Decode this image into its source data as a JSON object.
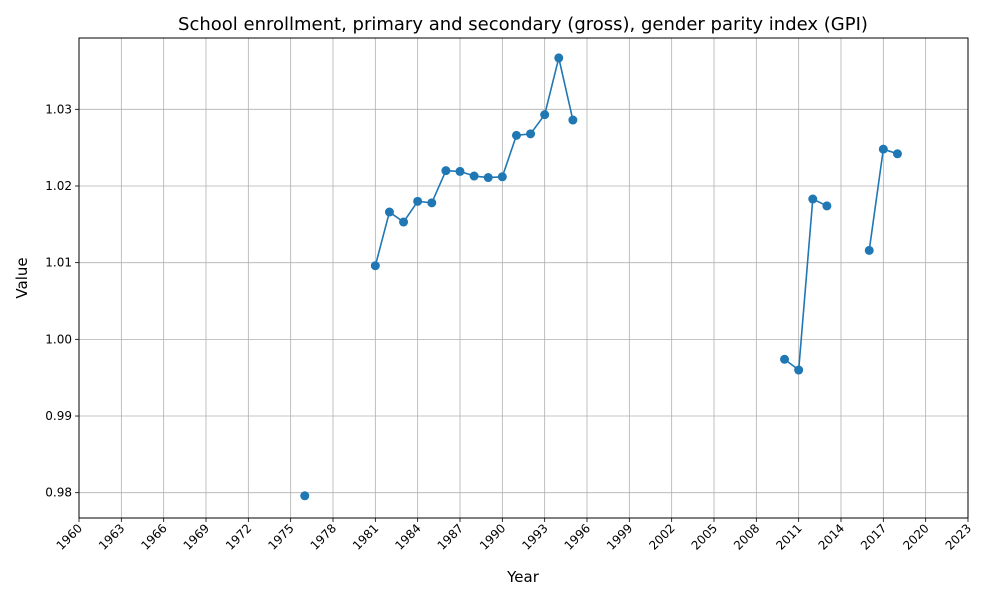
{
  "chart_data": {
    "type": "line",
    "title": "School enrollment, primary and secondary (gross), gender parity index (GPI)",
    "xlabel": "Year",
    "ylabel": "Value",
    "xlim": [
      1960,
      2023
    ],
    "ylim": [
      0.9767,
      1.0393
    ],
    "x_ticks": [
      1960,
      1963,
      1966,
      1969,
      1972,
      1975,
      1978,
      1981,
      1984,
      1987,
      1990,
      1993,
      1996,
      1999,
      2002,
      2005,
      2008,
      2011,
      2014,
      2017,
      2020,
      2023
    ],
    "y_ticks": [
      0.98,
      0.99,
      1.0,
      1.01,
      1.02,
      1.03
    ],
    "y_tick_labels": [
      "0.98",
      "0.99",
      "1.00",
      "1.01",
      "1.02",
      "1.03"
    ],
    "grid": true,
    "series": [
      {
        "color": "#1f77b4",
        "marker": "circle",
        "points": [
          {
            "x": 1976,
            "y": 0.9796
          },
          {
            "x": 1977,
            "y": null
          },
          {
            "x": 1981,
            "y": 1.0096
          },
          {
            "x": 1982,
            "y": 1.0166
          },
          {
            "x": 1983,
            "y": 1.0153
          },
          {
            "x": 1984,
            "y": 1.018
          },
          {
            "x": 1985,
            "y": 1.0178
          },
          {
            "x": 1986,
            "y": 1.022
          },
          {
            "x": 1987,
            "y": 1.0219
          },
          {
            "x": 1988,
            "y": 1.0213
          },
          {
            "x": 1989,
            "y": 1.0211
          },
          {
            "x": 1990,
            "y": 1.0212
          },
          {
            "x": 1991,
            "y": 1.0266
          },
          {
            "x": 1992,
            "y": 1.0268
          },
          {
            "x": 1993,
            "y": 1.0293
          },
          {
            "x": 1994,
            "y": 1.0367
          },
          {
            "x": 1995,
            "y": 1.0286
          },
          {
            "x": 1996,
            "y": null
          },
          {
            "x": 2010,
            "y": 0.9974
          },
          {
            "x": 2011,
            "y": 0.996
          },
          {
            "x": 2012,
            "y": 1.0183
          },
          {
            "x": 2013,
            "y": 1.0174
          },
          {
            "x": 2014,
            "y": null
          },
          {
            "x": 2016,
            "y": 1.0116
          },
          {
            "x": 2017,
            "y": 1.0248
          },
          {
            "x": 2018,
            "y": 1.0242
          }
        ]
      }
    ]
  }
}
